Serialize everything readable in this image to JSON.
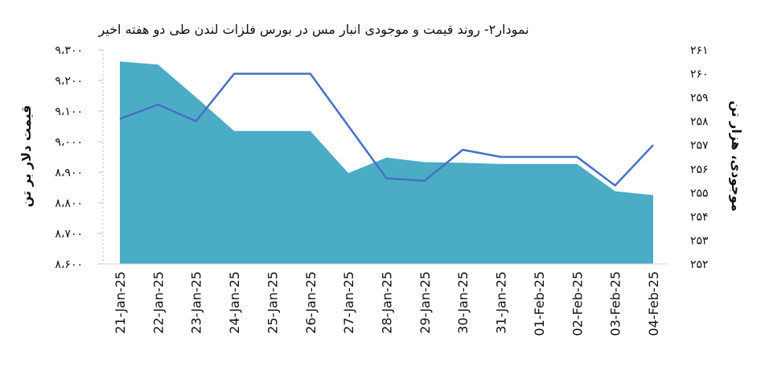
{
  "chart_data": {
    "type": "area+line",
    "title": "نمودار۲- روند قیمت و موجودی انبار مس در بورس فلزات لندن طی دو هفته اخیر",
    "left_axis_label": "قیمت دلار بر تن",
    "right_axis_label": "موجودی، هزار تن",
    "categories": [
      "21-Jan-25",
      "22-Jan-25",
      "23-Jan-25",
      "24-Jan-25",
      "25-Jan-25",
      "26-Jan-25",
      "27-Jan-25",
      "28-Jan-25",
      "29-Jan-25",
      "30-Jan-25",
      "31-Jan-25",
      "01-Feb-25",
      "02-Feb-25",
      "03-Feb-25",
      "04-Feb-25"
    ],
    "left_axis": {
      "min": 8600,
      "max": 9300,
      "ticks": [
        "۸،۶۰۰",
        "۸،۷۰۰",
        "۸،۸۰۰",
        "۸،۹۰۰",
        "۹،۰۰۰",
        "۹،۱۰۰",
        "۹،۲۰۰",
        "۹،۳۰۰"
      ]
    },
    "right_axis": {
      "min": 252,
      "max": 261,
      "ticks": [
        "۲۵۲",
        "۲۵۳",
        "۲۵۴",
        "۲۵۵",
        "۲۵۶",
        "۲۵۷",
        "۲۵۸",
        "۲۵۹",
        "۲۶۰",
        "۲۶۱"
      ]
    },
    "series": [
      {
        "type": "area",
        "axis": "left",
        "color": "#4bacc6",
        "values": [
          9262,
          9252,
          9145,
          9035,
          9035,
          9035,
          8897,
          8948,
          8933,
          8931,
          8927,
          8927,
          8927,
          8838,
          8825
        ]
      },
      {
        "type": "line",
        "axis": "right",
        "color": "#4472c4",
        "values": [
          258.1,
          258.7,
          258.0,
          260.0,
          260.0,
          260.0,
          257.8,
          255.6,
          255.5,
          256.8,
          256.5,
          256.5,
          256.5,
          255.3,
          257.0
        ]
      }
    ],
    "grid": false,
    "legend": "none"
  }
}
